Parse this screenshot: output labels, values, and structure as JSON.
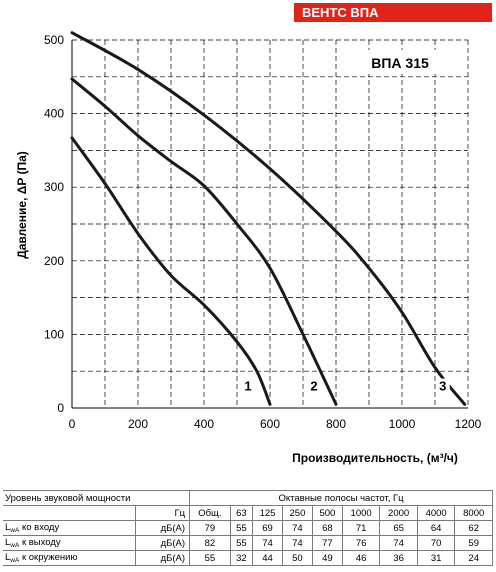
{
  "header": {
    "badge": "ВЕНТС ВПА"
  },
  "chart_data": {
    "type": "line",
    "model_label": "ВПА 315",
    "xlabel": "Производительность, (м³/ч)",
    "ylabel": "Давление, ΔP (Па)",
    "xlim": [
      0,
      1200
    ],
    "ylim": [
      0,
      500
    ],
    "x_ticks": [
      "0",
      "200",
      "400",
      "600",
      "800",
      "1000",
      "1200"
    ],
    "y_ticks": [
      "0",
      "100",
      "200",
      "300",
      "400",
      "500"
    ],
    "grid": true,
    "series": [
      {
        "name": "1",
        "points": [
          [
            0,
            367
          ],
          [
            100,
            305
          ],
          [
            200,
            237
          ],
          [
            300,
            180
          ],
          [
            400,
            140
          ],
          [
            500,
            90
          ],
          [
            560,
            50
          ],
          [
            600,
            5
          ]
        ]
      },
      {
        "name": "2",
        "points": [
          [
            0,
            447
          ],
          [
            100,
            410
          ],
          [
            200,
            370
          ],
          [
            300,
            335
          ],
          [
            400,
            302
          ],
          [
            500,
            250
          ],
          [
            600,
            190
          ],
          [
            700,
            100
          ],
          [
            800,
            5
          ]
        ]
      },
      {
        "name": "3",
        "points": [
          [
            0,
            510
          ],
          [
            200,
            460
          ],
          [
            400,
            398
          ],
          [
            600,
            325
          ],
          [
            800,
            240
          ],
          [
            900,
            190
          ],
          [
            1000,
            130
          ],
          [
            1100,
            55
          ],
          [
            1190,
            5
          ]
        ]
      }
    ]
  },
  "table": {
    "title": "Уровень звуковой мощности",
    "hz_label": "Гц",
    "bands_title": "Октавные полосы частот, Гц",
    "columns": [
      "Общ.",
      "63",
      "125",
      "250",
      "500",
      "1000",
      "2000",
      "4000",
      "8000"
    ],
    "rows": [
      {
        "prefix": "L",
        "sub": "wA",
        "suffix": " ко входу",
        "unit": "дБ(А)",
        "values": [
          "79",
          "55",
          "69",
          "74",
          "68",
          "71",
          "65",
          "64",
          "62"
        ]
      },
      {
        "prefix": "L",
        "sub": "wA",
        "suffix": " к выходу",
        "unit": "дБ(А)",
        "values": [
          "82",
          "55",
          "74",
          "74",
          "77",
          "76",
          "74",
          "70",
          "59"
        ]
      },
      {
        "prefix": "L",
        "sub": "wA",
        "suffix": " к окружению",
        "unit": "дБ(А)",
        "values": [
          "55",
          "32",
          "44",
          "50",
          "49",
          "46",
          "36",
          "31",
          "24"
        ]
      }
    ]
  }
}
